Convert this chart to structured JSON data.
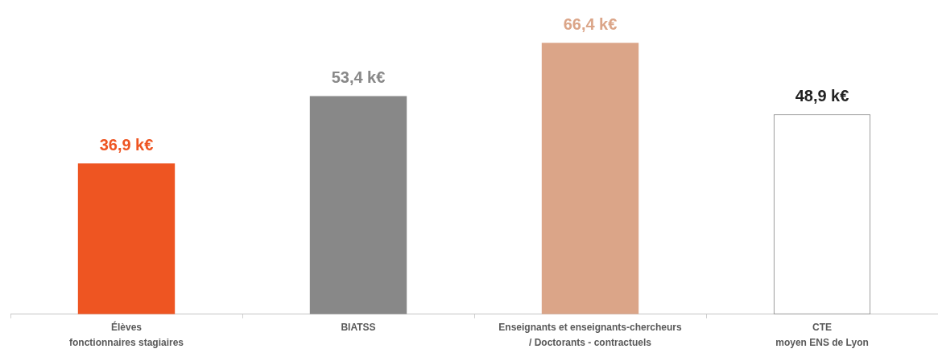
{
  "chart_data": {
    "type": "bar",
    "categories": [
      "Élèves\nfonctionnaires stagiaires",
      "BIATSS",
      "Enseignants et enseignants-chercheurs\n/ Doctorants - contractuels",
      "CTE\nmoyen ENS de Lyon"
    ],
    "values": [
      36.9,
      53.4,
      66.4,
      48.9
    ],
    "value_labels": [
      "36,9 k€",
      "53,4 k€",
      "66,4 k€",
      "48,9 k€"
    ],
    "colors": [
      "#ee5522",
      "#888888",
      "#dba588",
      "#ffffff"
    ],
    "tick_labels": "x"
  }
}
